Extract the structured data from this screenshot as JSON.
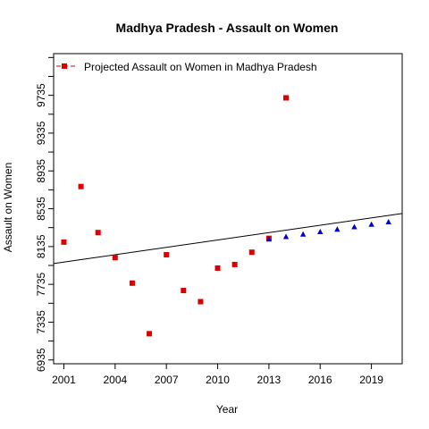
{
  "chart_data": {
    "type": "scatter",
    "title": "Madhya Pradesh  -  Assault on Women",
    "xlabel": "Year",
    "ylabel": "Assault on Women",
    "xlim": [
      2000.4,
      2020.8
    ],
    "ylim": [
      6895,
      10176
    ],
    "x_ticks": [
      2001,
      2004,
      2007,
      2010,
      2013,
      2016,
      2019
    ],
    "y_ticks": [
      6935,
      7135,
      7335,
      7535,
      7735,
      7935,
      8135,
      8335,
      8535,
      8735,
      8935,
      9135,
      9335,
      9535,
      9735,
      9935,
      10135
    ],
    "y_tick_labels": [
      "6935",
      "",
      "7335",
      "",
      "7735",
      "",
      "8135",
      "",
      "8535",
      "",
      "8935",
      "",
      "9335",
      "",
      "9735",
      "",
      ""
    ],
    "legend": {
      "position": "top-left",
      "entries": [
        "Projected  Assault on Women  in  Madhya Pradesh"
      ]
    },
    "colors": {
      "observed": "#dd0000",
      "projected": "#0000cc",
      "trend": "#000000"
    },
    "series": [
      {
        "marker": "square",
        "x": [
          2001,
          2002,
          2003,
          2004,
          2005,
          2006,
          2007,
          2008,
          2009,
          2010,
          2011,
          2012,
          2013,
          2014
        ],
        "values": [
          8182,
          8770,
          8283,
          8018,
          7748,
          7213,
          8048,
          7670,
          7552,
          7907,
          7945,
          8075,
          8222,
          9708
        ]
      },
      {
        "marker": "triangle",
        "x": [
          2013,
          2014,
          2015,
          2016,
          2017,
          2018,
          2019,
          2020
        ],
        "values": [
          8212,
          8238,
          8264,
          8290,
          8316,
          8342,
          8368,
          8394
        ]
      }
    ],
    "trend_line": {
      "x": [
        2000.4,
        2020.8
      ],
      "values": [
        7955,
        8485
      ]
    }
  }
}
